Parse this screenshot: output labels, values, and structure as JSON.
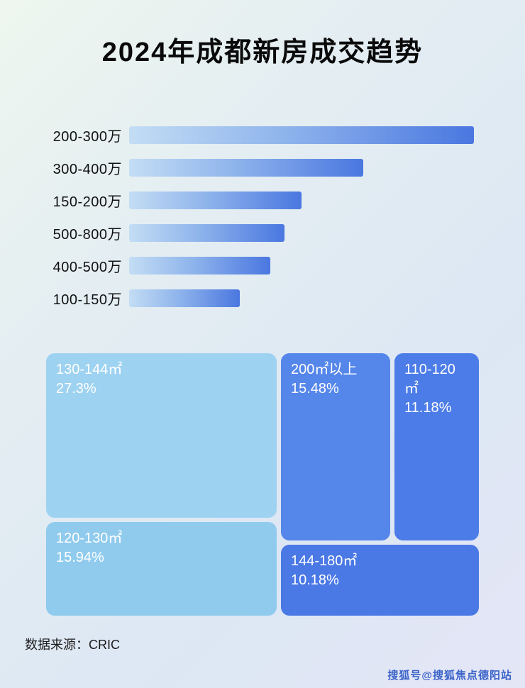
{
  "title": "2024年成都新房成交趋势",
  "source": "数据来源：CRIC",
  "watermark": "搜狐号@搜狐焦点德阳站",
  "chart_data": [
    {
      "type": "bar",
      "orientation": "horizontal",
      "title": "2024年成都新房成交趋势",
      "categories": [
        "200-300万",
        "300-400万",
        "150-200万",
        "500-800万",
        "400-500万",
        "100-150万"
      ],
      "values": [
        100,
        68,
        50,
        45,
        41,
        32
      ],
      "value_note": "relative bar length, % of longest bar (no numeric labels shown)",
      "xlabel": "",
      "ylabel": "",
      "grid": false,
      "legend": false
    },
    {
      "type": "treemap",
      "items": [
        {
          "label": "130-144㎡",
          "value": "27.3%"
        },
        {
          "label": "200㎡以上",
          "value": "15.48%"
        },
        {
          "label": "110-120㎡",
          "value": "11.18%"
        },
        {
          "label": "120-130㎡",
          "value": "15.94%"
        },
        {
          "label": "144-180㎡",
          "value": "10.18%"
        }
      ]
    }
  ],
  "bars": {
    "items": [
      {
        "label": "200-300万"
      },
      {
        "label": "300-400万"
      },
      {
        "label": "150-200万"
      },
      {
        "label": "500-800万"
      },
      {
        "label": "400-500万"
      },
      {
        "label": "100-150万"
      }
    ]
  },
  "treemap": {
    "items": [
      {
        "label": "130-144㎡",
        "value": "27.3%"
      },
      {
        "label": "200㎡以上",
        "value": "15.48%"
      },
      {
        "label": "110-120㎡",
        "value": "11.18%"
      },
      {
        "label": "120-130㎡",
        "value": "15.94%"
      },
      {
        "label": "144-180㎡",
        "value": "10.18%"
      }
    ]
  }
}
